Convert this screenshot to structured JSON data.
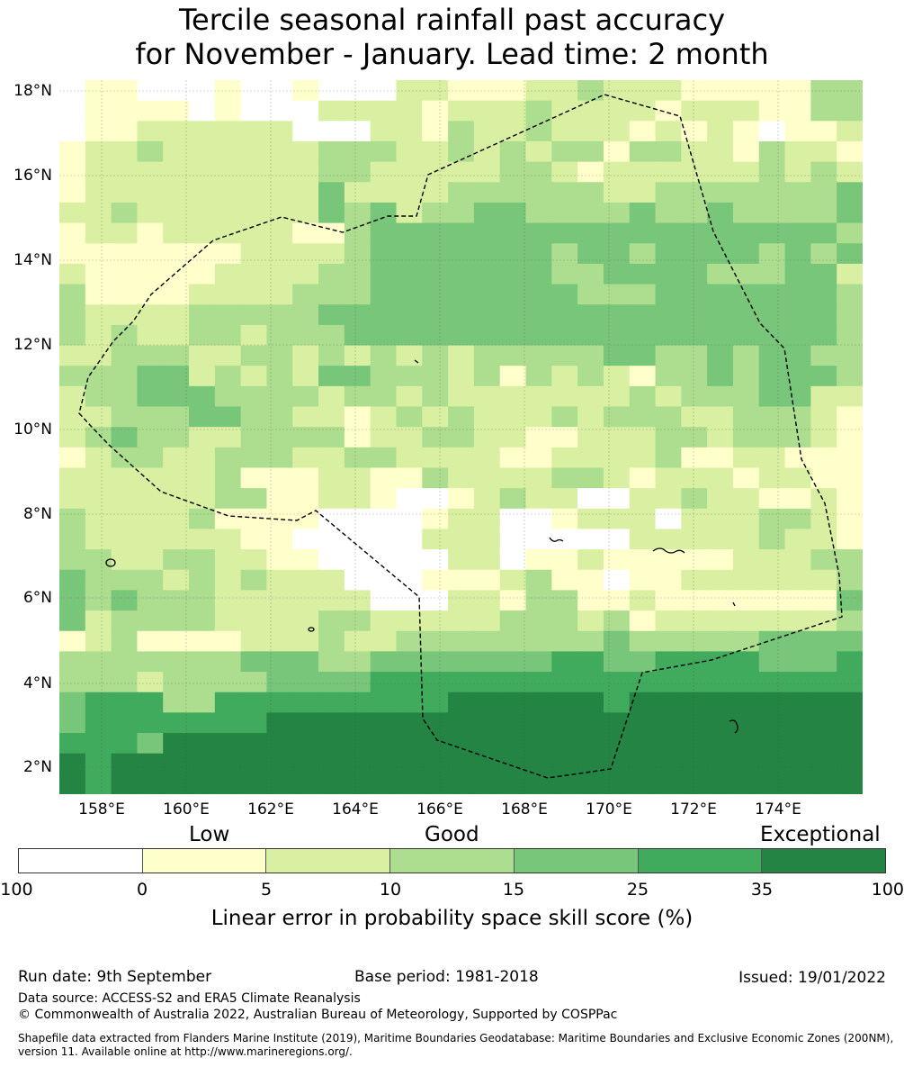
{
  "title": {
    "line1": "Tercile seasonal rainfall past accuracy",
    "line2": "for November - January. Lead time: 2 month"
  },
  "map": {
    "lat_ticks": [
      "18°N",
      "16°N",
      "14°N",
      "12°N",
      "10°N",
      "8°N",
      "6°N",
      "4°N",
      "2°N"
    ],
    "lon_ticks": [
      "158°E",
      "160°E",
      "162°E",
      "164°E",
      "166°E",
      "168°E",
      "170°E",
      "172°E",
      "174°E"
    ],
    "grid_code_legend": "0: <0, 1: 0-5, 2: 5-10, 3: 10-15, 4: 15-25, 5: 25-35, 6: 35-100",
    "grid_rows": [
      "0110001001000221112232221111133",
      "0111101000222212223222212221133",
      "0112222220002213223222121210112",
      "1223222222333223232331332213221",
      "1222222222332222233212222223232",
      "1222222222422223333332233333334",
      "2232222222434233443333433433334",
      "1221222221134444444444444444443",
      "1111111222234444444344344443434",
      "2111112222334444444334444333442",
      "3111122223334444444433344444443",
      "3222233333444444444444444444443",
      "3232233233344444444444444444443",
      "2233322332323232333334433434433",
      "3334423232443332313232133434443",
      "2334443333233232222222323334422",
      "2233344332212323222323332233321",
      "2343322333312233221122233233321",
      "1233223332233222211222231122111",
      "2222223111221132222332122212211",
      "2222223311221001232200223221121",
      "3222231111000012200122202223321",
      "3222222110000022200000222223221",
      "3322332211000002201121111122233",
      "4333232322200011123110112222223",
      "4343332222220002213311211111114",
      "4233332222332222233323122222223",
      "1231111222322333333334333334444",
      "3333333444334444444554455554445",
      "3332333344445555555555555555555",
      "4555335555555556666665666666666",
      "4555555566666666666666666666666",
      "5554666666666666666666666666666",
      "6566666666666666666666666666666",
      "6566666666666666666666666666666"
    ]
  },
  "colorbar": {
    "categories": {
      "low": "Low",
      "good": "Good",
      "exceptional": "Exceptional"
    },
    "ticks": [
      "-100",
      "0",
      "5",
      "10",
      "15",
      "25",
      "35",
      "100"
    ],
    "colors": [
      "#ffffff",
      "#ffffcc",
      "#d9f0a3",
      "#addd8e",
      "#78c679",
      "#41ab5d",
      "#238443"
    ],
    "label": "Linear error in probability space skill score (%)"
  },
  "footer": {
    "run_date": "Run date: 9th September",
    "base_period": "Base period: 1981-2018",
    "issued": "Issued: 19/01/2022",
    "data_source": "Data source: ACCESS-S2 and ERA5 Climate Reanalysis",
    "copyright": "© Commonwealth of Australia 2022, Australian Bureau of Meteorology, Supported by COSPPac",
    "shapefile_line1": "Shapefile data extracted from Flanders Marine Institute (2019), Maritime Boundaries Geodatabase: Maritime Boundaries and Exclusive Economic Zones (200NM),",
    "shapefile_line2": "version 11. Available online at http://www.marineregions.org/."
  }
}
